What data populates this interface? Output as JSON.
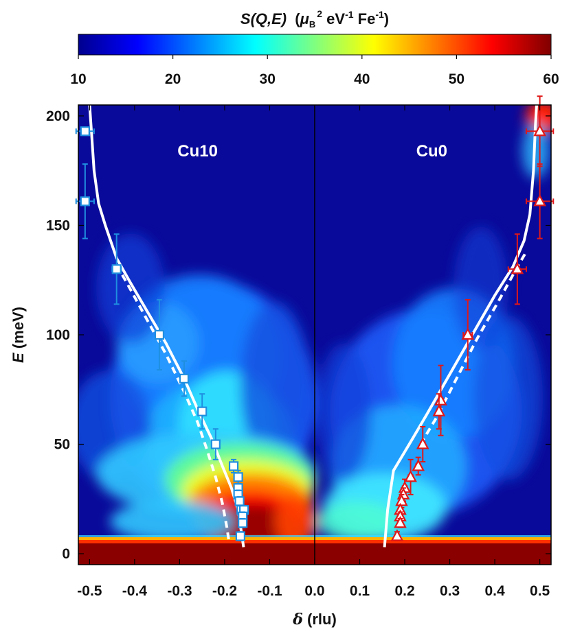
{
  "chart_data": {
    "type": "heatmap",
    "colorbar": {
      "title_main": "S(Q,E)",
      "title_unit_open": "(",
      "title_mu": "μ",
      "title_mu_sub": "B",
      "title_mu_sup": "2",
      "title_ev": " eV",
      "title_ev_sup": "-1",
      "title_fe": " Fe",
      "title_fe_sup": "-1",
      "title_close": ")",
      "min": 10,
      "max": 60,
      "ticks": [
        "10",
        "20",
        "30",
        "40",
        "50",
        "60"
      ],
      "colormap": "jet"
    },
    "xlabel_symbol": "δ",
    "xlabel_unit": " (rlu)",
    "ylabel_symbol": "E",
    "ylabel_unit": " (meV)",
    "xlim": [
      -0.525,
      0.525
    ],
    "ylim": [
      -5,
      205
    ],
    "xticks": [
      "-0.5",
      "-0.4",
      "-0.3",
      "-0.2",
      "-0.1",
      "0.0",
      "0.1",
      "0.2",
      "0.3",
      "0.4",
      "0.5"
    ],
    "xtick_values": [
      -0.5,
      -0.4,
      -0.3,
      -0.2,
      -0.1,
      0.0,
      0.1,
      0.2,
      0.3,
      0.4,
      0.5
    ],
    "yticks": [
      "0",
      "50",
      "100",
      "150",
      "200"
    ],
    "ytick_values": [
      0,
      50,
      100,
      150,
      200
    ],
    "panels": [
      {
        "label": "Cu10",
        "x_center": -0.26
      },
      {
        "label": "Cu0",
        "x_center": 0.26
      }
    ],
    "series": [
      {
        "name": "Cu10",
        "marker": "square",
        "color": "#1f8fe0",
        "points": [
          {
            "x": -0.51,
            "y": 193,
            "xerr": 0.02,
            "yerr": 0
          },
          {
            "x": -0.51,
            "y": 161,
            "xerr": 0.02,
            "yerr": 17
          },
          {
            "x": -0.44,
            "y": 130,
            "xerr": 0.01,
            "yerr": 16
          },
          {
            "x": -0.345,
            "y": 100,
            "xerr": 0.005,
            "yerr": 16
          },
          {
            "x": -0.29,
            "y": 80,
            "xerr": 0.005,
            "yerr": 8
          },
          {
            "x": -0.25,
            "y": 65,
            "xerr": 0.005,
            "yerr": 8
          },
          {
            "x": -0.22,
            "y": 50,
            "xerr": 0.005,
            "yerr": 7
          },
          {
            "x": -0.18,
            "y": 40,
            "xerr": 0.005,
            "yerr": 3
          },
          {
            "x": -0.17,
            "y": 35,
            "xerr": 0.005,
            "yerr": 3
          },
          {
            "x": -0.17,
            "y": 30,
            "xerr": 0.005,
            "yerr": 2
          },
          {
            "x": -0.17,
            "y": 27,
            "xerr": 0.005,
            "yerr": 2
          },
          {
            "x": -0.167,
            "y": 24,
            "xerr": 0.004,
            "yerr": 2
          },
          {
            "x": -0.163,
            "y": 20,
            "xerr": 0.004,
            "yerr": 2
          },
          {
            "x": -0.157,
            "y": 20,
            "xerr": 0.004,
            "yerr": 2
          },
          {
            "x": -0.16,
            "y": 17,
            "xerr": 0.004,
            "yerr": 2
          },
          {
            "x": -0.16,
            "y": 14,
            "xerr": 0.004,
            "yerr": 2
          },
          {
            "x": -0.165,
            "y": 8,
            "xerr": 0.004,
            "yerr": 2
          }
        ]
      },
      {
        "name": "Cu0",
        "marker": "triangle",
        "color": "#e01818",
        "points": [
          {
            "x": 0.5,
            "y": 193,
            "xerr": 0.03,
            "yerr": 16
          },
          {
            "x": 0.5,
            "y": 161,
            "xerr": 0.03,
            "yerr": 17
          },
          {
            "x": 0.45,
            "y": 130,
            "xerr": 0.02,
            "yerr": 16
          },
          {
            "x": 0.34,
            "y": 100,
            "xerr": 0.01,
            "yerr": 16
          },
          {
            "x": 0.28,
            "y": 70,
            "xerr": 0.005,
            "yerr": 16
          },
          {
            "x": 0.276,
            "y": 65,
            "xerr": 0.005,
            "yerr": 8
          },
          {
            "x": 0.24,
            "y": 50,
            "xerr": 0.005,
            "yerr": 8
          },
          {
            "x": 0.23,
            "y": 40,
            "xerr": 0.005,
            "yerr": 4
          },
          {
            "x": 0.213,
            "y": 35,
            "xerr": 0.005,
            "yerr": 8
          },
          {
            "x": 0.2,
            "y": 30,
            "xerr": 0.005,
            "yerr": 4
          },
          {
            "x": 0.197,
            "y": 27,
            "xerr": 0.005,
            "yerr": 3
          },
          {
            "x": 0.193,
            "y": 24,
            "xerr": 0.005,
            "yerr": 3
          },
          {
            "x": 0.19,
            "y": 20,
            "xerr": 0.004,
            "yerr": 2
          },
          {
            "x": 0.19,
            "y": 17,
            "xerr": 0.004,
            "yerr": 2
          },
          {
            "x": 0.19,
            "y": 14,
            "xerr": 0.004,
            "yerr": 2
          },
          {
            "x": 0.183,
            "y": 8,
            "xerr": 0.004,
            "yerr": 2
          }
        ]
      }
    ],
    "curves": [
      {
        "style": "solid",
        "color": "#ffffff",
        "points": [
          [
            -0.5,
            205
          ],
          [
            -0.495,
            190
          ],
          [
            -0.49,
            175
          ],
          [
            -0.48,
            160
          ],
          [
            -0.465,
            150
          ],
          [
            -0.44,
            135
          ],
          [
            -0.41,
            124
          ],
          [
            -0.37,
            110
          ],
          [
            -0.33,
            96
          ],
          [
            -0.29,
            80
          ],
          [
            -0.26,
            66
          ],
          [
            -0.23,
            53
          ],
          [
            -0.205,
            40
          ],
          [
            -0.185,
            30
          ],
          [
            -0.17,
            20
          ],
          [
            -0.163,
            10
          ],
          [
            -0.158,
            3
          ]
        ]
      },
      {
        "style": "dashed",
        "color": "#ffffff",
        "points": [
          [
            -0.44,
            132
          ],
          [
            -0.41,
            121
          ],
          [
            -0.37,
            106
          ],
          [
            -0.33,
            91
          ],
          [
            -0.29,
            74
          ],
          [
            -0.26,
            60
          ],
          [
            -0.24,
            48
          ],
          [
            -0.22,
            35
          ],
          [
            -0.205,
            23
          ],
          [
            -0.195,
            12
          ],
          [
            -0.19,
            5
          ]
        ]
      },
      {
        "style": "solid",
        "color": "#ffffff",
        "points": [
          [
            0.155,
            3
          ],
          [
            0.162,
            20
          ],
          [
            0.175,
            38
          ],
          [
            0.21,
            50
          ],
          [
            0.25,
            64
          ],
          [
            0.3,
            82
          ],
          [
            0.35,
            100
          ],
          [
            0.4,
            118
          ],
          [
            0.44,
            131
          ],
          [
            0.465,
            143
          ],
          [
            0.478,
            155
          ],
          [
            0.486,
            175
          ],
          [
            0.49,
            195
          ],
          [
            0.493,
            205
          ]
        ]
      },
      {
        "style": "dashed",
        "color": "#ffffff",
        "points": [
          [
            0.235,
            50
          ],
          [
            0.27,
            62
          ],
          [
            0.31,
            78
          ],
          [
            0.36,
            98
          ],
          [
            0.41,
            116
          ],
          [
            0.45,
            131
          ],
          [
            0.47,
            138
          ]
        ]
      }
    ]
  }
}
